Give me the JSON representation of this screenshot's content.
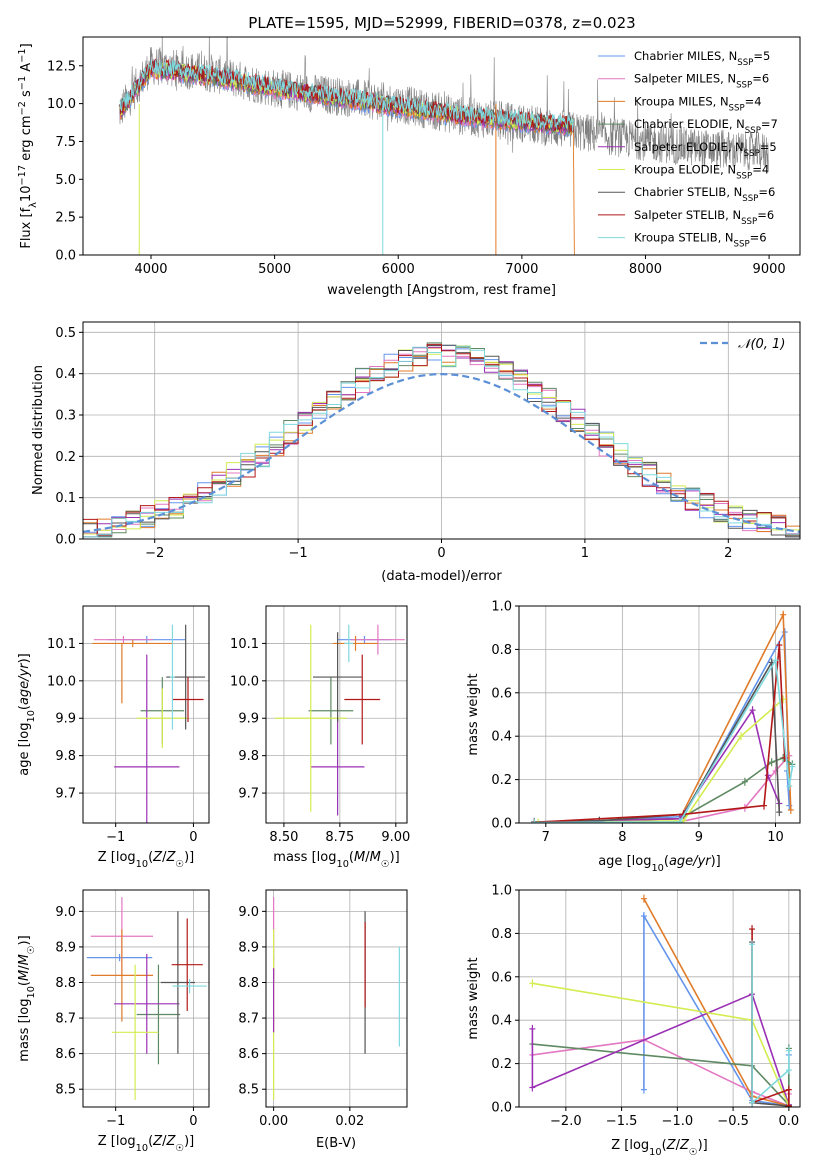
{
  "figure": {
    "title": "PLATE=1595, MJD=52999, FIBERID=0378, z=0.023"
  },
  "series": [
    {
      "name": "Chabrier MILES",
      "nssp": "5",
      "color": "#6495ed"
    },
    {
      "name": "Salpeter MILES",
      "nssp": "6",
      "color": "#e377c2"
    },
    {
      "name": "Kroupa MILES",
      "nssp": "4",
      "color": "#e07b2a"
    },
    {
      "name": "Chabrier ELODIE",
      "nssp": "7",
      "color": "#5f8a63"
    },
    {
      "name": "Salpeter ELODIE",
      "nssp": "5",
      "color": "#9b30b5"
    },
    {
      "name": "Kroupa ELODIE",
      "nssp": "4",
      "color": "#d4ec50"
    },
    {
      "name": "Chabrier STELIB",
      "nssp": "6",
      "color": "#555555"
    },
    {
      "name": "Salpeter STELIB",
      "nssp": "6",
      "color": "#b21818"
    },
    {
      "name": "Kroupa STELIB",
      "nssp": "6",
      "color": "#7fd9de"
    }
  ],
  "chart_data": [
    {
      "id": "spectrum",
      "type": "line",
      "title": "PLATE=1595, MJD=52999, FIBERID=0378, z=0.023",
      "xlabel": "wavelength [Angstrom, rest frame]",
      "ylabel": "Flux [f_λ 10^-17 erg cm^-2 s^-1 A^-1]",
      "xlim": [
        3450,
        9250
      ],
      "ylim": [
        0,
        14.4
      ],
      "xticks": [
        4000,
        5000,
        6000,
        7000,
        8000,
        9000
      ],
      "yticks": [
        0.0,
        2.5,
        5.0,
        7.5,
        10.0,
        12.5
      ],
      "grid": false,
      "legend": "upper right",
      "data_envelope": {
        "x": [
          3750,
          4000,
          4500,
          5000,
          5500,
          6000,
          6500,
          7000,
          7400,
          8000,
          8500,
          9000
        ],
        "y": [
          9.5,
          12.5,
          12.0,
          11.0,
          10.5,
          10.0,
          9.2,
          8.7,
          8.2,
          7.5,
          7.0,
          6.8
        ]
      },
      "model_envelope": {
        "x": [
          3750,
          4000,
          4500,
          5000,
          5500,
          6000,
          6500,
          7000,
          7420
        ],
        "y": [
          9.5,
          12.3,
          11.8,
          11.0,
          10.4,
          9.8,
          9.2,
          8.8,
          8.5
        ]
      }
    },
    {
      "id": "residuals",
      "type": "histogram",
      "xlabel": "(data-model)/error",
      "ylabel": "Normed distribution",
      "xlim": [
        -2.5,
        2.5
      ],
      "ylim": [
        0,
        0.525
      ],
      "xticks": [
        -2,
        -1,
        0,
        1,
        2
      ],
      "yticks": [
        0.0,
        0.1,
        0.2,
        0.3,
        0.4,
        0.5
      ],
      "grid": true,
      "legend": "upper right",
      "reference_label": "𝒩(0, 1)",
      "reference_color": "#5b8fd6",
      "bin_width": 0.1
    },
    {
      "id": "age_vs_Z",
      "type": "scatter",
      "xlabel": "Z [log10(Z/Z☉)]",
      "ylabel": "age [log10(age/yr)]",
      "xlim": [
        -1.42,
        0.2
      ],
      "ylim": [
        9.62,
        10.2
      ],
      "xticks": [
        -1,
        0
      ],
      "yticks": [
        9.7,
        9.8,
        9.9,
        10.0,
        10.1
      ],
      "grid": true,
      "points": [
        {
          "x": -0.6,
          "y": 10.11,
          "xerr": 0.5,
          "yerr": 0.01,
          "c": "#6495ed"
        },
        {
          "x": -0.9,
          "y": 10.11,
          "xerr": 0.38,
          "yerr": 0.01,
          "c": "#e377c2"
        },
        {
          "x": -0.78,
          "y": 10.1,
          "xerr": 0.52,
          "yerr": 0.01,
          "c": "#e07b2a"
        },
        {
          "x": -0.92,
          "y": 10.02,
          "xerr": 0.0,
          "yerr": 0.08,
          "c": "#e07b2a"
        },
        {
          "x": -0.4,
          "y": 9.92,
          "xerr": 0.28,
          "yerr": 0.09,
          "c": "#5f8a63"
        },
        {
          "x": -0.6,
          "y": 9.77,
          "xerr": 0.42,
          "yerr": 0.3,
          "c": "#9b30b5"
        },
        {
          "x": -0.4,
          "y": 9.9,
          "xerr": 0.33,
          "yerr": 0.08,
          "c": "#d4ec50"
        },
        {
          "x": -0.1,
          "y": 10.01,
          "xerr": 0.25,
          "yerr": 0.14,
          "c": "#555555"
        },
        {
          "x": -0.07,
          "y": 9.95,
          "xerr": 0.2,
          "yerr": 0.06,
          "c": "#b21818"
        },
        {
          "x": -0.27,
          "y": 10.01,
          "xerr": 0.03,
          "yerr": 0.14,
          "c": "#7fd9de"
        }
      ]
    },
    {
      "id": "age_vs_mass",
      "type": "scatter",
      "xlabel": "mass [log10(M/M☉)]",
      "ylabel": "",
      "xlim": [
        8.42,
        9.05
      ],
      "ylim": [
        9.62,
        10.2
      ],
      "xticks": [
        8.5,
        8.75,
        9.0
      ],
      "xticklabels": [
        "8.50",
        "8.75",
        "9.00"
      ],
      "yticks": [
        9.7,
        9.8,
        9.9,
        10.0,
        10.1
      ],
      "grid": true,
      "points": [
        {
          "x": 8.86,
          "y": 10.11,
          "xerr": 0.12,
          "yerr": 0.01,
          "c": "#6495ed"
        },
        {
          "x": 8.92,
          "y": 10.11,
          "xerr": 0.12,
          "yerr": 0.04,
          "c": "#e377c2"
        },
        {
          "x": 8.82,
          "y": 10.1,
          "xerr": 0.1,
          "yerr": 0.02,
          "c": "#e07b2a"
        },
        {
          "x": 8.71,
          "y": 9.92,
          "xerr": 0.1,
          "yerr": 0.09,
          "c": "#5f8a63"
        },
        {
          "x": 8.74,
          "y": 9.77,
          "xerr": 0.12,
          "yerr": 0.13,
          "c": "#9b30b5"
        },
        {
          "x": 8.62,
          "y": 9.9,
          "xerr": 0.16,
          "yerr": 0.25,
          "c": "#d4ec50"
        },
        {
          "x": 8.74,
          "y": 10.01,
          "xerr": 0.11,
          "yerr": 0.12,
          "c": "#555555"
        },
        {
          "x": 8.85,
          "y": 9.95,
          "xerr": 0.08,
          "yerr": 0.12,
          "c": "#b21818"
        },
        {
          "x": 8.79,
          "y": 10.1,
          "xerr": 0.02,
          "yerr": 0.05,
          "c": "#7fd9de"
        }
      ]
    },
    {
      "id": "weight_vs_age",
      "type": "line",
      "xlabel": "age [log10(age/yr)]",
      "ylabel": "mass weight",
      "xlim": [
        6.65,
        10.32
      ],
      "ylim": [
        0,
        1.0
      ],
      "xticks": [
        7,
        8,
        9,
        10
      ],
      "yticks": [
        0.0,
        0.2,
        0.4,
        0.6,
        0.8,
        1.0
      ],
      "grid": true,
      "series": [
        {
          "c": "#6495ed",
          "x": [
            6.85,
            7.7,
            8.8,
            10.12,
            10.18,
            10.15
          ],
          "y": [
            0.005,
            0.01,
            0.03,
            0.88,
            0.08,
            0.24
          ]
        },
        {
          "c": "#e377c2",
          "x": [
            6.85,
            8.75,
            9.6,
            10.0,
            10.18
          ],
          "y": [
            0.002,
            0.005,
            0.07,
            0.24,
            0.31
          ]
        },
        {
          "c": "#e07b2a",
          "x": [
            6.85,
            8.75,
            10.1,
            10.2
          ],
          "y": [
            0.003,
            0.02,
            0.96,
            0.06
          ]
        },
        {
          "c": "#5f8a63",
          "x": [
            6.85,
            7.7,
            8.75,
            9.6,
            9.95,
            10.1,
            10.22
          ],
          "y": [
            0.005,
            0.01,
            0.02,
            0.19,
            0.28,
            0.3,
            0.27
          ]
        },
        {
          "c": "#9b30b5",
          "x": [
            6.85,
            8.75,
            9.7,
            9.9,
            10.05
          ],
          "y": [
            0.002,
            0.02,
            0.52,
            0.22,
            0.09
          ]
        },
        {
          "c": "#d4ec50",
          "x": [
            6.9,
            8.8,
            9.55,
            10.1
          ],
          "y": [
            0.002,
            0.01,
            0.4,
            0.57
          ]
        },
        {
          "c": "#555555",
          "x": [
            6.85,
            7.7,
            8.8,
            9.95,
            10.05
          ],
          "y": [
            0.002,
            0.01,
            0.04,
            0.74,
            0.05
          ]
        },
        {
          "c": "#b21818",
          "x": [
            6.85,
            8.8,
            9.85,
            10.05,
            10.12
          ],
          "y": [
            0.003,
            0.04,
            0.08,
            0.82,
            0.3
          ]
        },
        {
          "c": "#7fd9de",
          "x": [
            6.85,
            8.75,
            10.0,
            10.18,
            10.22
          ],
          "y": [
            0.002,
            0.005,
            0.75,
            0.17,
            0.26
          ]
        }
      ]
    },
    {
      "id": "mass_vs_Z",
      "type": "scatter",
      "xlabel": "Z [log10(Z/Z☉)]",
      "ylabel": "mass [log10(M/M☉)]",
      "xlim": [
        -1.42,
        0.2
      ],
      "ylim": [
        8.45,
        9.06
      ],
      "xticks": [
        -1,
        0
      ],
      "yticks": [
        8.5,
        8.6,
        8.7,
        8.8,
        8.9,
        9.0
      ],
      "grid": true,
      "points": [
        {
          "x": -0.95,
          "y": 8.87,
          "xerr": 0.42,
          "yerr": 0.01,
          "c": "#6495ed"
        },
        {
          "x": -0.92,
          "y": 8.93,
          "xerr": 0.4,
          "yerr": 0.11,
          "c": "#e377c2"
        },
        {
          "x": -0.92,
          "y": 8.82,
          "xerr": 0.4,
          "yerr": 0.13,
          "c": "#e07b2a"
        },
        {
          "x": -0.45,
          "y": 8.71,
          "xerr": 0.28,
          "yerr": 0.14,
          "c": "#5f8a63"
        },
        {
          "x": -0.6,
          "y": 8.74,
          "xerr": 0.42,
          "yerr": 0.14,
          "c": "#9b30b5"
        },
        {
          "x": -0.75,
          "y": 8.66,
          "xerr": 0.3,
          "yerr": 0.19,
          "c": "#d4ec50"
        },
        {
          "x": -0.2,
          "y": 8.8,
          "xerr": 0.22,
          "yerr": 0.2,
          "c": "#555555"
        },
        {
          "x": -0.08,
          "y": 8.85,
          "xerr": 0.2,
          "yerr": 0.13,
          "c": "#b21818"
        },
        {
          "x": -0.05,
          "y": 8.79,
          "xerr": 0.22,
          "yerr": 0.02,
          "c": "#7fd9de"
        }
      ]
    },
    {
      "id": "mass_vs_EBV",
      "type": "errorbar",
      "xlabel": "E(B-V)",
      "ylabel": "",
      "xlim": [
        -0.002,
        0.035
      ],
      "ylim": [
        8.45,
        9.06
      ],
      "xticks": [
        0.0,
        0.02
      ],
      "xticklabels": [
        "0.00",
        "0.02"
      ],
      "yticks": [
        8.5,
        8.6,
        8.7,
        8.8,
        8.9,
        9.0
      ],
      "grid": true,
      "points": [
        {
          "x": 0.0,
          "y": 8.87,
          "yerr": 0.01,
          "c": "#6495ed"
        },
        {
          "x": 0.0,
          "y": 8.93,
          "yerr": 0.11,
          "c": "#e377c2"
        },
        {
          "x": 0.0,
          "y": 8.82,
          "yerr": 0.02,
          "c": "#e07b2a"
        },
        {
          "x": 0.0,
          "y": 8.71,
          "yerr": 0.24,
          "c": "#d4ec50"
        },
        {
          "x": 0.0,
          "y": 8.75,
          "yerr": 0.09,
          "c": "#9b30b5"
        },
        {
          "x": 0.024,
          "y": 8.8,
          "yerr": 0.2,
          "c": "#555555"
        },
        {
          "x": 0.024,
          "y": 8.85,
          "yerr": 0.12,
          "c": "#b21818"
        },
        {
          "x": 0.033,
          "y": 8.76,
          "yerr": 0.14,
          "c": "#7fd9de"
        }
      ]
    },
    {
      "id": "weight_vs_Z",
      "type": "line",
      "xlabel": "Z [log10(Z/Z☉)]",
      "ylabel": "mass weight",
      "xlim": [
        -2.42,
        0.1
      ],
      "ylim": [
        0,
        1.0
      ],
      "xticks": [
        -2.0,
        -1.5,
        -1.0,
        -0.5,
        0.0
      ],
      "yticks": [
        0.0,
        0.2,
        0.4,
        0.6,
        0.8,
        1.0
      ],
      "grid": true,
      "series": [
        {
          "c": "#6495ed",
          "x": [
            -1.3,
            -1.3,
            -0.33,
            0.0,
            0.0
          ],
          "y": [
            0.08,
            0.88,
            0.03,
            0.005,
            0.24
          ]
        },
        {
          "c": "#e377c2",
          "x": [
            -2.3,
            -1.3,
            -0.33,
            0.0,
            0.0
          ],
          "y": [
            0.24,
            0.31,
            0.07,
            0.005,
            0.06
          ]
        },
        {
          "c": "#e07b2a",
          "x": [
            -1.3,
            -0.33,
            0.0
          ],
          "y": [
            0.96,
            0.05,
            0.005
          ]
        },
        {
          "c": "#5f8a63",
          "x": [
            -2.3,
            -0.33,
            0.0,
            0.0
          ],
          "y": [
            0.29,
            0.19,
            0.01,
            0.27
          ]
        },
        {
          "c": "#9b30b5",
          "x": [
            -2.3,
            -2.3,
            -0.33,
            0.0
          ],
          "y": [
            0.36,
            0.09,
            0.52,
            0.01
          ]
        },
        {
          "c": "#d4ec50",
          "x": [
            -2.3,
            -0.33,
            0.0
          ],
          "y": [
            0.57,
            0.4,
            0.005
          ]
        },
        {
          "c": "#555555",
          "x": [
            -0.33,
            -0.33,
            0.0
          ],
          "y": [
            0.76,
            0.02,
            0.005
          ]
        },
        {
          "c": "#b21818",
          "x": [
            -0.33,
            -0.33,
            0.0,
            0.0
          ],
          "y": [
            0.82,
            0.02,
            0.08,
            0.005
          ]
        },
        {
          "c": "#7fd9de",
          "x": [
            -0.33,
            -0.33,
            0.0,
            0.0
          ],
          "y": [
            0.75,
            0.02,
            0.17,
            0.26
          ]
        }
      ]
    }
  ]
}
